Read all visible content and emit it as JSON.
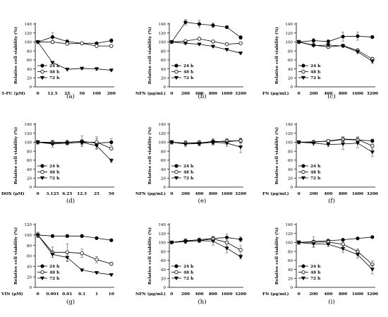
{
  "chart_data": [
    {
      "panel": "(a)",
      "type": "line",
      "ylabel": "Relative cell viability (%)",
      "xlabel": "5-FU (μM)",
      "categories": [
        "0",
        "12.5",
        "25",
        "50",
        "100",
        "200"
      ],
      "ylim": [
        0,
        140
      ],
      "yticks": [
        0,
        20,
        40,
        60,
        80,
        100,
        120,
        140
      ],
      "series": [
        {
          "name": "24 h",
          "marker": "filled-circle",
          "values": [
            100,
            111,
            101,
            97,
            97,
            103
          ],
          "errors": [
            2,
            9,
            4,
            2,
            2,
            4
          ]
        },
        {
          "name": "48 h",
          "marker": "open-circle",
          "values": [
            100,
            100,
            96,
            97,
            91,
            91
          ],
          "errors": [
            2,
            3,
            2,
            2,
            2,
            2
          ]
        },
        {
          "name": "72 h",
          "marker": "filled-triangle",
          "values": [
            100,
            54,
            39,
            41,
            40,
            37
          ],
          "errors": [
            2,
            2,
            3,
            2,
            3,
            2
          ]
        }
      ]
    },
    {
      "panel": "(b)",
      "type": "line",
      "ylabel": "Relative cell viability (%)",
      "xlabel": "NFN (μg/mL)",
      "categories": [
        "0",
        "200",
        "400",
        "800",
        "1600",
        "3200"
      ],
      "ylim": [
        0,
        140
      ],
      "yticks": [
        0,
        20,
        40,
        60,
        80,
        100,
        120,
        140
      ],
      "series": [
        {
          "name": "24 h",
          "marker": "filled-circle",
          "values": [
            100,
            144,
            140,
            137,
            133,
            110
          ],
          "errors": [
            2,
            6,
            8,
            5,
            3,
            4
          ]
        },
        {
          "name": "48 h",
          "marker": "open-circle",
          "values": [
            100,
            102,
            107,
            101,
            95,
            97
          ],
          "errors": [
            2,
            2,
            3,
            2,
            2,
            2
          ]
        },
        {
          "name": "72 h",
          "marker": "filled-triangle",
          "values": [
            100,
            97,
            95,
            90,
            83,
            75
          ],
          "errors": [
            2,
            2,
            2,
            2,
            2,
            2
          ]
        }
      ]
    },
    {
      "panel": "(c)",
      "type": "line",
      "ylabel": "Relative cell viability (%)",
      "xlabel": "FN (μg/mL)",
      "categories": [
        "0",
        "200",
        "400",
        "800",
        "1600",
        "3200"
      ],
      "ylim": [
        0,
        140
      ],
      "yticks": [
        0,
        20,
        40,
        60,
        80,
        100,
        120,
        140
      ],
      "series": [
        {
          "name": "24 h",
          "marker": "filled-circle",
          "values": [
            100,
            103,
            101,
            112,
            113,
            111
          ],
          "errors": [
            4,
            5,
            4,
            10,
            9,
            3
          ]
        },
        {
          "name": "48 h",
          "marker": "open-circle",
          "values": [
            100,
            93,
            89,
            92,
            81,
            62
          ],
          "errors": [
            3,
            3,
            3,
            3,
            4,
            4
          ]
        },
        {
          "name": "72 h",
          "marker": "filled-triangle",
          "values": [
            100,
            92,
            93,
            91,
            78,
            57
          ],
          "errors": [
            3,
            2,
            3,
            3,
            4,
            5
          ]
        }
      ]
    },
    {
      "panel": "(d)",
      "type": "line",
      "ylabel": "Relative cell viability (%)",
      "xlabel": "DOX (μM)",
      "categories": [
        "0",
        "3.125",
        "6.25",
        "12.5",
        "25",
        "50"
      ],
      "ylim": [
        0,
        140
      ],
      "yticks": [
        0,
        20,
        40,
        60,
        80,
        100,
        120,
        140
      ],
      "series": [
        {
          "name": "24 h",
          "marker": "filled-circle",
          "values": [
            100,
            100,
            100,
            102,
            98,
            100
          ],
          "errors": [
            4,
            5,
            5,
            12,
            14,
            8
          ]
        },
        {
          "name": "48 h",
          "marker": "open-circle",
          "values": [
            100,
            98,
            98,
            100,
            100,
            86
          ],
          "errors": [
            4,
            4,
            4,
            6,
            8,
            3
          ]
        },
        {
          "name": "72 h",
          "marker": "filled-triangle",
          "values": [
            100,
            96,
            98,
            100,
            92,
            59
          ],
          "errors": [
            4,
            7,
            4,
            5,
            6,
            4
          ]
        }
      ]
    },
    {
      "panel": "(e)",
      "type": "line",
      "ylabel": "Relative cell viability (%)",
      "xlabel": "NFN (μg/mL)",
      "categories": [
        "0",
        "200",
        "400",
        "800",
        "1600",
        "3200"
      ],
      "ylim": [
        0,
        140
      ],
      "yticks": [
        0,
        20,
        40,
        60,
        80,
        100,
        120,
        140
      ],
      "series": [
        {
          "name": "24 h",
          "marker": "filled-circle",
          "values": [
            100,
            98,
            98,
            102,
            101,
            104
          ],
          "errors": [
            4,
            5,
            5,
            6,
            6,
            5
          ]
        },
        {
          "name": "48 h",
          "marker": "open-circle",
          "values": [
            100,
            98,
            99,
            100,
            103,
            103
          ],
          "errors": [
            4,
            5,
            5,
            5,
            5,
            5
          ]
        },
        {
          "name": "72 h",
          "marker": "filled-triangle",
          "values": [
            100,
            96,
            97,
            100,
            98,
            89
          ],
          "errors": [
            4,
            6,
            5,
            6,
            7,
            12
          ]
        }
      ]
    },
    {
      "panel": "(f)",
      "type": "line",
      "ylabel": "Relative cell viability (%)",
      "xlabel": "FN (μg/mL)",
      "categories": [
        "0",
        "200",
        "400",
        "800",
        "1600",
        "3200"
      ],
      "ylim": [
        0,
        140
      ],
      "yticks": [
        0,
        20,
        40,
        60,
        80,
        100,
        120,
        140
      ],
      "series": [
        {
          "name": "24 h",
          "marker": "filled-circle",
          "values": [
            100,
            101,
            102,
            106,
            105,
            103
          ],
          "errors": [
            3,
            3,
            4,
            5,
            5,
            4
          ]
        },
        {
          "name": "48 h",
          "marker": "open-circle",
          "values": [
            100,
            100,
            103,
            107,
            106,
            92
          ],
          "errors": [
            3,
            3,
            3,
            5,
            6,
            8
          ]
        },
        {
          "name": "72 h",
          "marker": "filled-triangle",
          "values": [
            100,
            98,
            95,
            96,
            98,
            78
          ],
          "errors": [
            3,
            5,
            5,
            12,
            10,
            10
          ]
        }
      ]
    },
    {
      "panel": "(g)",
      "type": "line",
      "ylabel": "Relative cell viability (%)",
      "xlabel": "VIN (μM)",
      "categories": [
        "0",
        "0.001",
        "0.01",
        "0.1",
        "1",
        "10"
      ],
      "ylim": [
        0,
        120
      ],
      "yticks": [
        0,
        20,
        40,
        60,
        80,
        100,
        120
      ],
      "series": [
        {
          "name": "24 h",
          "marker": "filled-circle",
          "values": [
            100,
            98,
            98,
            98,
            94,
            90
          ],
          "errors": [
            5,
            3,
            3,
            3,
            2,
            2
          ]
        },
        {
          "name": "48 h",
          "marker": "open-circle",
          "values": [
            100,
            67,
            67,
            65,
            53,
            45
          ],
          "errors": [
            5,
            10,
            16,
            8,
            6,
            3
          ]
        },
        {
          "name": "72 h",
          "marker": "filled-triangle",
          "values": [
            100,
            63,
            57,
            33,
            28,
            24
          ],
          "errors": [
            5,
            6,
            8,
            2,
            2,
            2
          ]
        }
      ]
    },
    {
      "panel": "(h)",
      "type": "line",
      "ylabel": "Relative cell viability (%)",
      "xlabel": "NFN (μg/mL)",
      "categories": [
        "0",
        "200",
        "400",
        "800",
        "1600",
        "3200"
      ],
      "ylim": [
        0,
        140
      ],
      "yticks": [
        0,
        20,
        40,
        60,
        80,
        100,
        120,
        140
      ],
      "series": [
        {
          "name": "24 h",
          "marker": "filled-circle",
          "values": [
            100,
            104,
            106,
            109,
            111,
            107
          ],
          "errors": [
            3,
            4,
            4,
            5,
            8,
            6
          ]
        },
        {
          "name": "48 h",
          "marker": "open-circle",
          "values": [
            100,
            103,
            104,
            108,
            100,
            83
          ],
          "errors": [
            3,
            4,
            4,
            5,
            9,
            10
          ]
        },
        {
          "name": "72 h",
          "marker": "filled-triangle",
          "values": [
            100,
            102,
            104,
            103,
            87,
            68
          ],
          "errors": [
            3,
            4,
            4,
            9,
            10,
            4
          ]
        }
      ]
    },
    {
      "panel": "(i)",
      "type": "line",
      "ylabel": "Relative cell viability (%)",
      "xlabel": "FN (μg/mL)",
      "categories": [
        "0",
        "200",
        "400",
        "800",
        "1600",
        "3200"
      ],
      "ylim": [
        0,
        140
      ],
      "yticks": [
        0,
        20,
        40,
        60,
        80,
        100,
        120,
        140
      ],
      "series": [
        {
          "name": "24 h",
          "marker": "filled-circle",
          "values": [
            100,
            102,
            104,
            106,
            109,
            112
          ],
          "errors": [
            3,
            3,
            3,
            2,
            2,
            2
          ]
        },
        {
          "name": "48 h",
          "marker": "open-circle",
          "values": [
            100,
            101,
            101,
            96,
            80,
            51
          ],
          "errors": [
            4,
            12,
            6,
            6,
            6,
            8
          ]
        },
        {
          "name": "72 h",
          "marker": "filled-triangle",
          "values": [
            100,
            97,
            96,
            86,
            73,
            40
          ],
          "errors": [
            4,
            6,
            5,
            8,
            8,
            10
          ]
        }
      ]
    }
  ]
}
